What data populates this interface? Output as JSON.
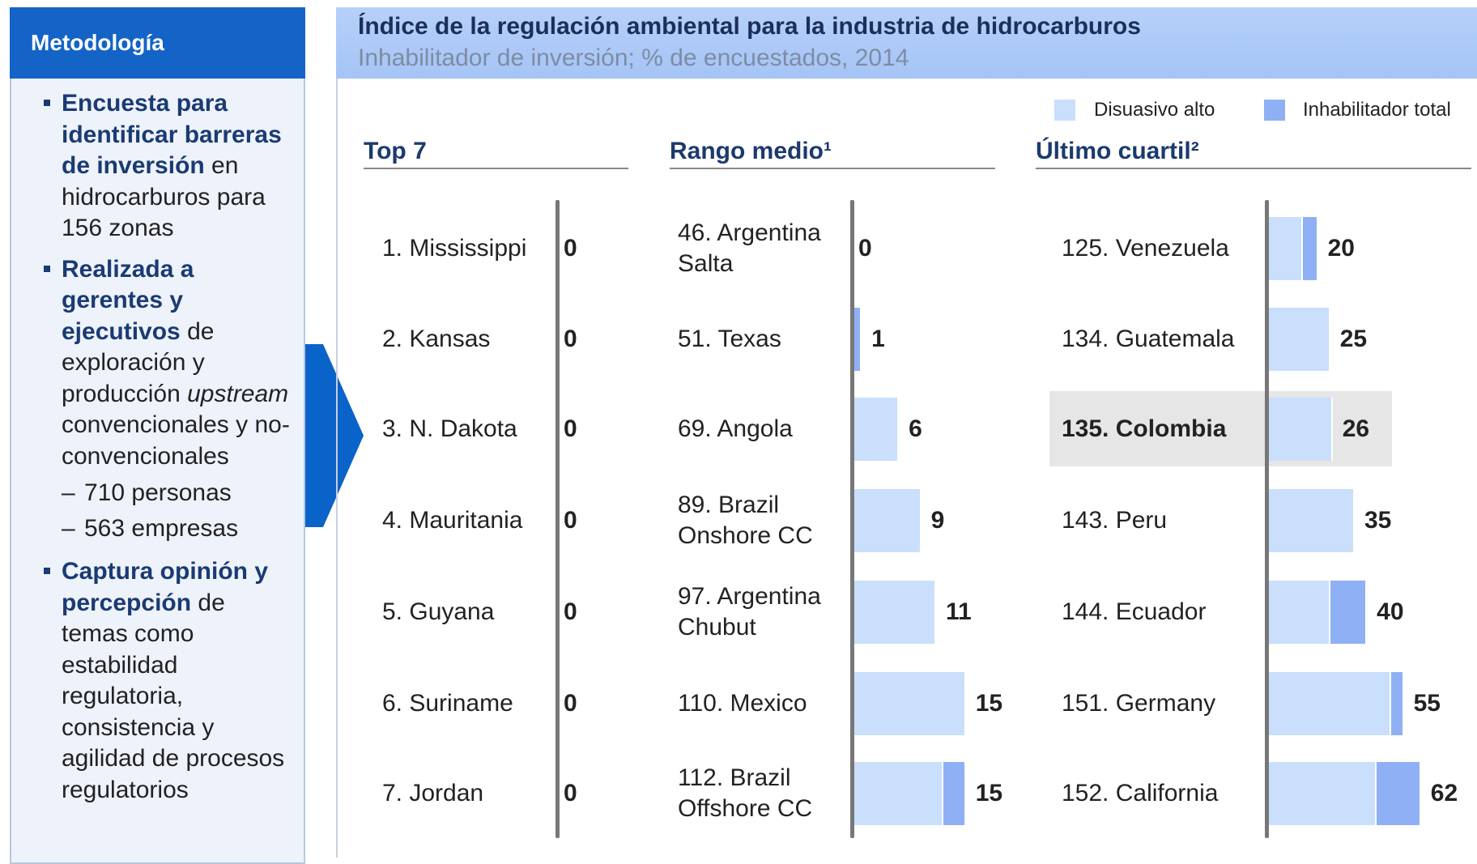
{
  "sidebar": {
    "title": "Metodología",
    "bullets": [
      {
        "parts": [
          {
            "text": "Encuesta para identificar barreras de inversión",
            "style": "bold"
          },
          {
            "text": " en hidrocarburos para 156 zonas"
          }
        ]
      },
      {
        "parts": [
          {
            "text": "Realizada a gerentes y ejecutivos",
            "style": "bold"
          },
          {
            "text": " de exploración y producción "
          },
          {
            "text": "upstream",
            "style": "italic"
          },
          {
            "text": " convencionales y no-convencionales"
          }
        ],
        "subitems": [
          "710 personas",
          "563 empresas"
        ]
      },
      {
        "parts": [
          {
            "text": "Captura opinión y percepción",
            "style": "bold"
          },
          {
            "text": " de temas como estabilidad regulatoria, consistencia y agilidad de procesos regulatorios"
          }
        ]
      }
    ]
  },
  "chart_data": {
    "type": "bar",
    "orientation": "horizontal",
    "stacked": true,
    "title": "Índice de la regulación ambiental para la industria de hidrocarburos",
    "subtitle": "Inhabilitador de inversión; % de encuestados, 2014",
    "legend": [
      {
        "name": "Disuasivo alto",
        "color": "#c9dffb"
      },
      {
        "name": "Inhabilitador total",
        "color": "#8fb0f5"
      }
    ],
    "panels": [
      {
        "title": "Top 7",
        "categories": [
          "1. Mississippi",
          "2. Kansas",
          "3. N. Dakota",
          "4. Mauritania",
          "5. Guyana",
          "6. Suriname",
          "7. Jordan"
        ],
        "xlim": [
          0,
          22
        ],
        "series": [
          [
            0,
            0,
            0,
            0,
            0,
            0,
            0
          ],
          [
            0,
            0,
            0,
            0,
            0,
            0,
            0
          ]
        ],
        "totals": [
          0,
          0,
          0,
          0,
          0,
          0,
          0
        ],
        "highlight": null
      },
      {
        "title": "Rango medio¹",
        "categories": [
          "46. Argentina\nSalta",
          "51. Texas",
          "69. Angola",
          "89. Brazil\nOnshore CC",
          "97. Argentina\nChubut",
          "110. Mexico",
          "112. Brazil\nOffshore CC"
        ],
        "xlim": [
          0,
          22
        ],
        "series": [
          [
            0,
            0,
            6,
            9,
            11,
            15,
            12
          ],
          [
            0,
            1,
            0,
            0,
            0,
            0,
            3
          ]
        ],
        "totals": [
          0,
          1,
          6,
          9,
          11,
          15,
          15
        ],
        "highlight": null
      },
      {
        "title": "Último cuartil²",
        "categories": [
          "125. Venezuela",
          "134. Guatemala",
          "135. Colombia",
          "143. Peru",
          "144. Ecuador",
          "151. Germany",
          "152. California"
        ],
        "xlim": [
          0,
          70
        ],
        "series": [
          [
            14,
            25,
            26,
            35,
            25,
            50,
            44
          ],
          [
            6,
            0,
            0,
            0,
            15,
            5,
            18
          ]
        ],
        "totals": [
          20,
          25,
          26,
          35,
          40,
          55,
          62
        ],
        "highlight": 2
      }
    ]
  }
}
